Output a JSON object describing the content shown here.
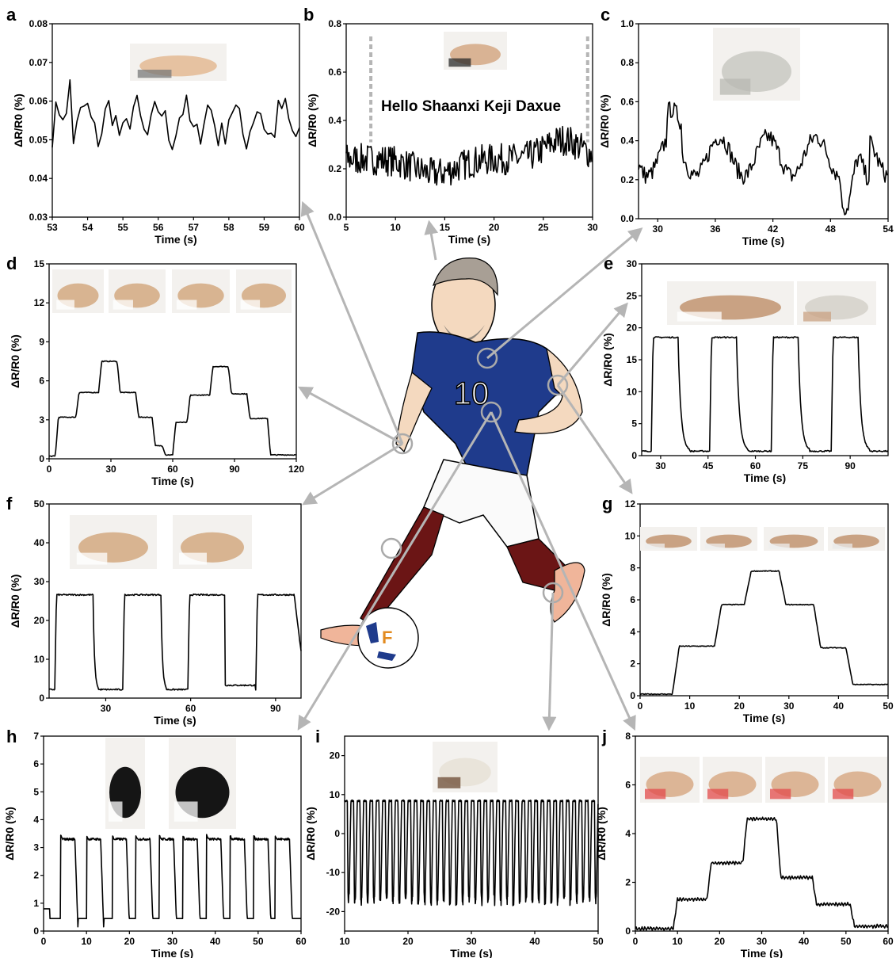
{
  "chart_data": [
    {
      "id": "a",
      "type": "line",
      "panel_letter": "a",
      "xlabel": "Time (s)",
      "ylabel": "ΔR/R0 (%)",
      "xlim": [
        53,
        60
      ],
      "ylim": [
        0.03,
        0.08
      ],
      "xticks": [
        53,
        54,
        55,
        56,
        57,
        58,
        59,
        60
      ],
      "yticks": [
        0.03,
        0.04,
        0.05,
        0.06,
        0.07,
        0.08
      ],
      "ytick_decimals": 2,
      "photo": "wrist-pulse-photo"
    },
    {
      "id": "b",
      "type": "line",
      "panel_letter": "b",
      "xlabel": "Time (s)",
      "ylabel": "ΔR/R0 (%)",
      "xlim": [
        5,
        30
      ],
      "ylim": [
        0,
        0.8
      ],
      "xticks": [
        5,
        10,
        15,
        20,
        25,
        30
      ],
      "yticks": [
        0.0,
        0.2,
        0.4,
        0.6,
        0.8
      ],
      "ytick_decimals": 1,
      "annotation": "Hello Shaanxi Keji Daxue",
      "marker_lines_x": [
        7.5,
        29.5
      ],
      "photo": "throat-speech-photo"
    },
    {
      "id": "c",
      "type": "line",
      "panel_letter": "c",
      "xlabel": "Time (s)",
      "ylabel": "ΔR/R0 (%)",
      "xlim": [
        28,
        54
      ],
      "ylim": [
        0,
        1.0
      ],
      "xticks": [
        30,
        36,
        42,
        48,
        54
      ],
      "yticks": [
        0.0,
        0.2,
        0.4,
        0.6,
        0.8,
        1.0
      ],
      "ytick_decimals": 1,
      "photo": "chest-breathing-photo"
    },
    {
      "id": "d",
      "type": "line",
      "panel_letter": "d",
      "xlabel": "Time (s)",
      "ylabel": "ΔR/R0 (%)",
      "xlim": [
        0,
        120
      ],
      "ylim": [
        0,
        15
      ],
      "xticks": [
        0,
        30,
        60,
        90,
        120
      ],
      "yticks": [
        0,
        3,
        6,
        9,
        12,
        15
      ],
      "ytick_decimals": 0,
      "photo": "finger-bending-sequence-photo"
    },
    {
      "id": "e",
      "type": "line",
      "panel_letter": "e",
      "xlabel": "Time (s)",
      "ylabel": "ΔR/R0 (%)",
      "xlim": [
        24,
        102
      ],
      "ylim": [
        0,
        30
      ],
      "xticks": [
        30,
        45,
        60,
        75,
        90
      ],
      "yticks": [
        0,
        5,
        10,
        15,
        20,
        25,
        30
      ],
      "ytick_decimals": 0,
      "photo": "elbow-bending-photo"
    },
    {
      "id": "f",
      "type": "line",
      "panel_letter": "f",
      "xlabel": "Time (s)",
      "ylabel": "ΔR/R0 (%)",
      "xlim": [
        10,
        99
      ],
      "ylim": [
        0,
        50
      ],
      "xticks": [
        30,
        60,
        90
      ],
      "yticks": [
        0,
        10,
        20,
        30,
        40,
        50
      ],
      "ytick_decimals": 0,
      "photo": "finger-bend-straight-photo"
    },
    {
      "id": "g",
      "type": "line",
      "panel_letter": "g",
      "xlabel": "Time (s)",
      "ylabel": "ΔR/R0 (%)",
      "xlim": [
        0,
        50
      ],
      "ylim": [
        0,
        12
      ],
      "xticks": [
        0,
        10,
        20,
        30,
        40,
        50
      ],
      "yticks": [
        0,
        2,
        4,
        6,
        8,
        10,
        12
      ],
      "ytick_decimals": 0,
      "photo": "arm-angle-sequence-photo"
    },
    {
      "id": "h",
      "type": "line",
      "panel_letter": "h",
      "xlabel": "Time (s)",
      "ylabel": "ΔR/R0 (%)",
      "xlim": [
        0,
        60
      ],
      "ylim": [
        0,
        7
      ],
      "xticks": [
        0,
        10,
        20,
        30,
        40,
        50,
        60
      ],
      "yticks": [
        0,
        1,
        2,
        3,
        4,
        5,
        6,
        7
      ],
      "ytick_decimals": 0,
      "photo": "knee-walking-photo"
    },
    {
      "id": "i",
      "type": "line",
      "panel_letter": "i",
      "xlabel": "Time (s)",
      "ylabel": "ΔR/R0 (%)",
      "xlim": [
        10,
        50
      ],
      "ylim": [
        -25,
        25
      ],
      "xticks": [
        10,
        20,
        30,
        40,
        50
      ],
      "yticks": [
        -20,
        -10,
        0,
        10,
        20
      ],
      "ytick_decimals": 0,
      "photo": "shoe-step-photo"
    },
    {
      "id": "j",
      "type": "line",
      "panel_letter": "j",
      "xlabel": "Time (s)",
      "ylabel": "ΔR/R0 (%)",
      "xlim": [
        0,
        60
      ],
      "ylim": [
        0,
        8
      ],
      "xticks": [
        0,
        10,
        20,
        30,
        40,
        50,
        60
      ],
      "yticks": [
        0,
        2,
        4,
        6,
        8
      ],
      "ytick_decimals": 0,
      "photo": "knee-bending-sequence-photo"
    }
  ],
  "illustration": {
    "name": "soccer-player-illustration",
    "jersey_number": "10",
    "ball_letter": "F"
  },
  "colors": {
    "line": "#000000",
    "arrow": "#b5b5b5",
    "jersey": "#1f3b8c",
    "sock": "#6b1515",
    "skin": "#f4d9bf",
    "marker": "#b5b5b5"
  }
}
